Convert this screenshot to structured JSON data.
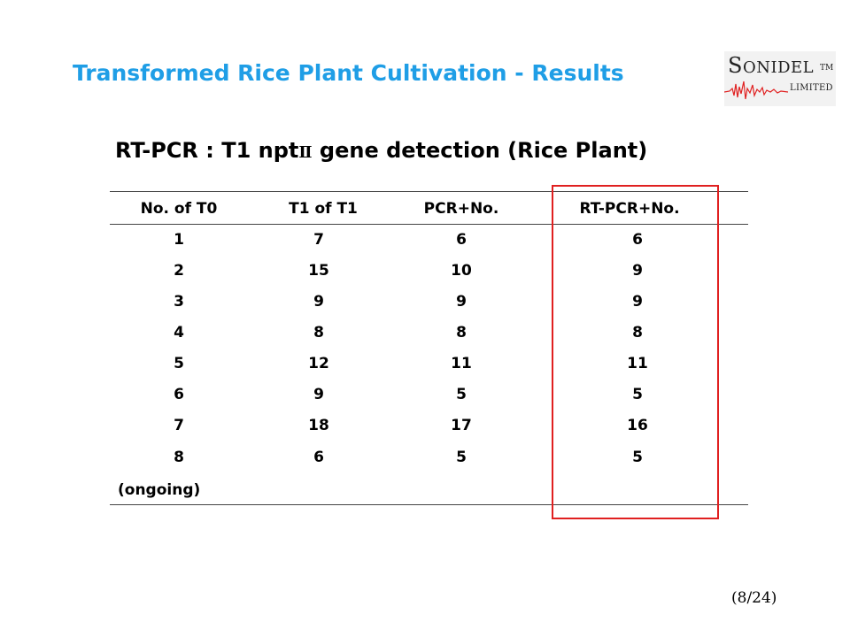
{
  "slide": {
    "title": "Transformed Rice Plant Cultivation - Results",
    "page_number": "(8/24)"
  },
  "logo": {
    "first_letter": "S",
    "rest_word": "ONIDEL",
    "tm": "TM",
    "limited": "LIMITED",
    "wave_color": "#e02020"
  },
  "subtitle": {
    "prefix": "RT-PCR : T1  npt",
    "roman": "Ⅱ",
    "suffix": " gene detection (Rice Plant)"
  },
  "table": {
    "headers": [
      "No. of T0",
      "T1 of T1",
      "PCR+No.",
      "RT-PCR+No."
    ],
    "rows": [
      [
        "1",
        "7",
        "6",
        "6"
      ],
      [
        "2",
        "15",
        "10",
        "9"
      ],
      [
        "3",
        "9",
        "9",
        "9"
      ],
      [
        "4",
        "8",
        "8",
        "8"
      ],
      [
        "5",
        "12",
        "11",
        "11"
      ],
      [
        "6",
        "9",
        "5",
        "5"
      ],
      [
        "7",
        "18",
        "17",
        "16"
      ],
      [
        "8",
        "6",
        "5",
        "5"
      ]
    ],
    "footnote": "(ongoing)",
    "highlight_color": "#e02020"
  }
}
